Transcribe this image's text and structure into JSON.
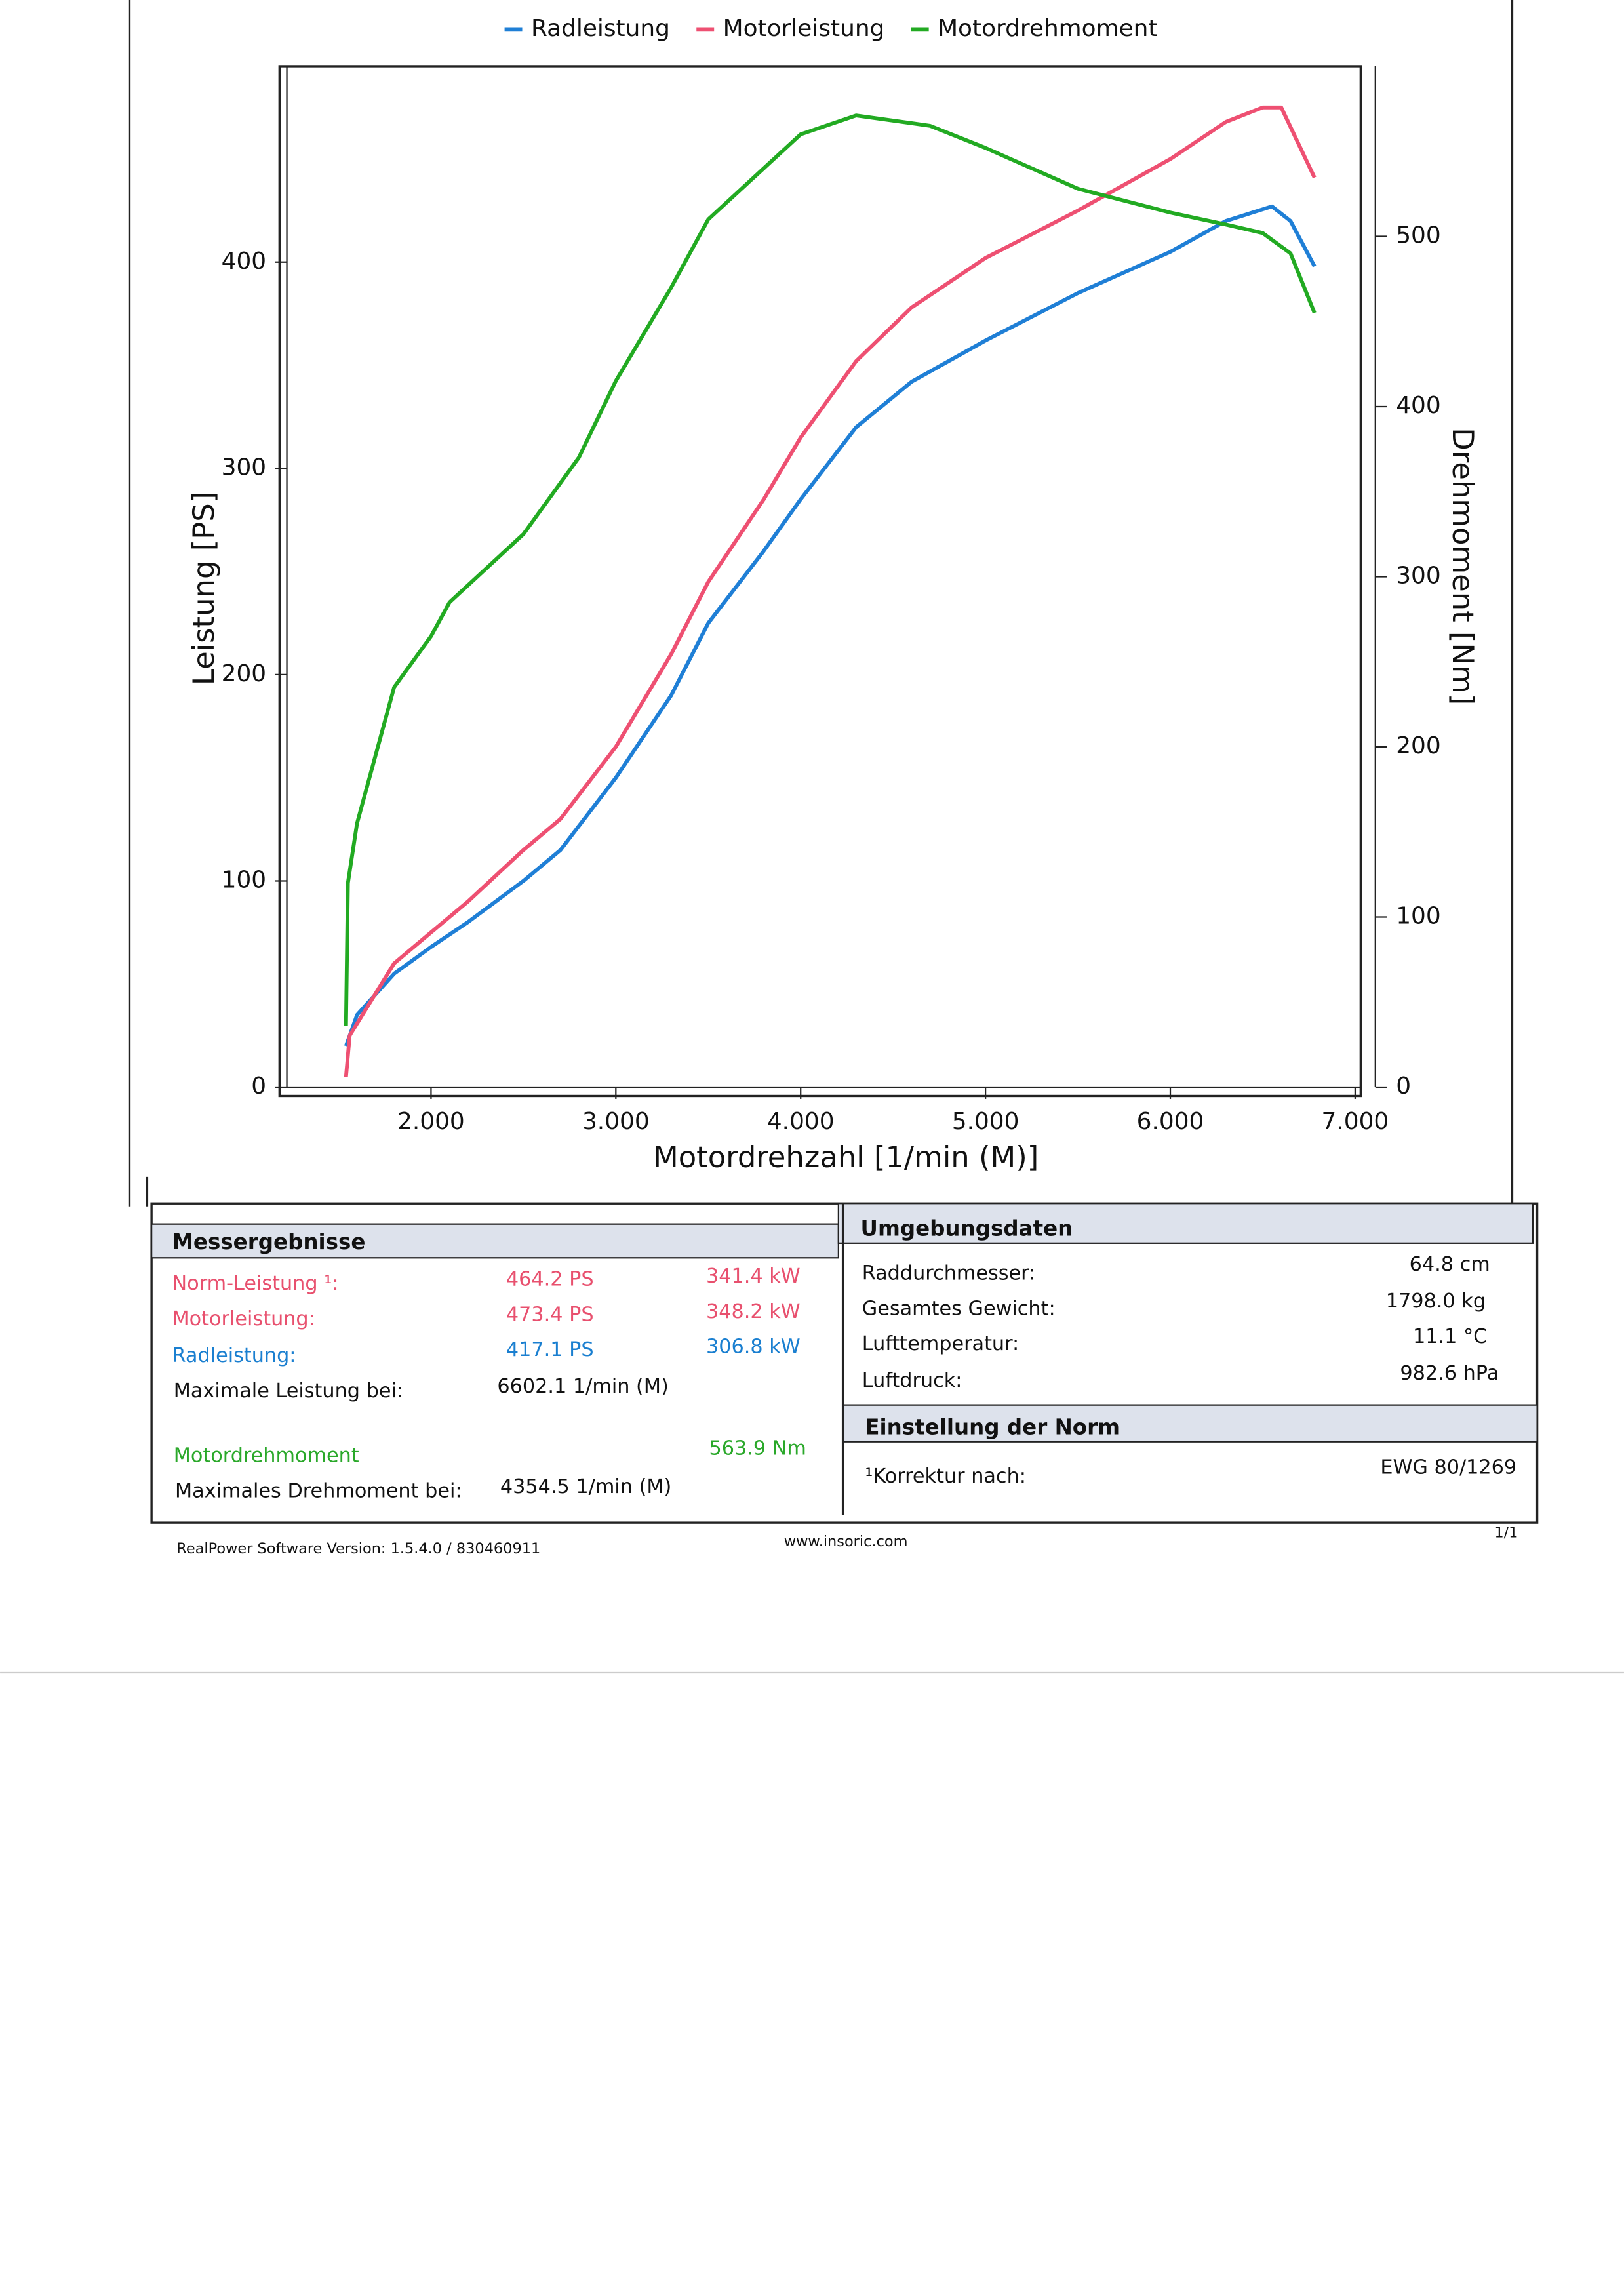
{
  "chart_data": {
    "type": "line",
    "x_label": "Motordrehzahl [1/min (M)]",
    "y_label": "Leistung [PS]",
    "y2_label": "Drehmoment [Nm]",
    "xlim": [
      1220,
      7030
    ],
    "ylim": [
      0,
      495
    ],
    "y2lim": [
      0,
      600
    ],
    "xticks": [
      {
        "value": 2000,
        "label": "2.000"
      },
      {
        "value": 3000,
        "label": "3.000"
      },
      {
        "value": 4000,
        "label": "4.000"
      },
      {
        "value": 5000,
        "label": "5.000"
      },
      {
        "value": 6000,
        "label": "6.000"
      },
      {
        "value": 7000,
        "label": "7.000"
      }
    ],
    "yticks": [
      0,
      100,
      200,
      300,
      400
    ],
    "y2ticks": [
      0,
      100,
      200,
      300,
      400,
      500
    ],
    "legend": "top",
    "series": [
      {
        "name": "Radleistung",
        "color": "#1f7fd6",
        "x": [
          1540,
          1600,
          1800,
          2000,
          2200,
          2500,
          2700,
          3000,
          3300,
          3500,
          3800,
          4000,
          4300,
          4600,
          5000,
          5500,
          6000,
          6300,
          6550,
          6650,
          6780
        ],
        "values": [
          20,
          35,
          55,
          68,
          80,
          100,
          115,
          150,
          190,
          225,
          260,
          285,
          320,
          342,
          362,
          385,
          405,
          420,
          427,
          420,
          398
        ]
      },
      {
        "name": "Motorleistung",
        "color": "#ee5072",
        "x": [
          1540,
          1560,
          1800,
          2000,
          2200,
          2500,
          2700,
          3000,
          3300,
          3500,
          3800,
          4000,
          4300,
          4600,
          5000,
          5500,
          6000,
          6300,
          6500,
          6600,
          6780
        ],
        "values": [
          5,
          25,
          60,
          75,
          90,
          115,
          130,
          165,
          210,
          245,
          285,
          315,
          352,
          378,
          402,
          425,
          450,
          468,
          475,
          475,
          441
        ]
      },
      {
        "name": "Motordrehmoment",
        "color": "#22aa22",
        "axis": "y2",
        "x": [
          1540,
          1550,
          1600,
          1800,
          2000,
          2100,
          2500,
          2800,
          3000,
          3300,
          3500,
          3800,
          4000,
          4300,
          4700,
          5000,
          5500,
          6000,
          6300,
          6500,
          6650,
          6780
        ],
        "values": [
          36,
          120,
          155,
          235,
          265,
          285,
          325,
          370,
          415,
          470,
          510,
          540,
          560,
          571,
          565,
          552,
          528,
          514,
          507,
          502,
          490,
          455
        ]
      }
    ]
  },
  "results": {
    "header": "Messergebnisse",
    "rows": [
      {
        "label": "Norm-Leistung ¹:",
        "ps": "464.2 PS",
        "kw": "341.4 kW"
      },
      {
        "label": "Motorleistung:",
        "ps": "473.4 PS",
        "kw": "348.2 kW"
      },
      {
        "label": "Radleistung:",
        "ps": "417.1 PS",
        "kw": "306.8 kW"
      }
    ],
    "max_power": {
      "label": "Maximale Leistung bei:",
      "value": "6602.1 1/min (M)"
    },
    "torque": {
      "label": "Motordrehmoment",
      "value": "563.9 Nm"
    },
    "max_torque": {
      "label": "Maximales Drehmoment bei:",
      "value": "4354.5 1/min (M)"
    }
  },
  "environment": {
    "header": "Umgebungsdaten",
    "rows": [
      {
        "label": "Raddurchmesser:",
        "value": "64.8 cm"
      },
      {
        "label": "Gesamtes Gewicht:",
        "value": "1798.0 kg"
      },
      {
        "label": "Lufttemperatur:",
        "value": "11.1 °C"
      },
      {
        "label": "Luftdruck:",
        "value": "982.6 hPa"
      }
    ]
  },
  "norm": {
    "header": "Einstellung der Norm",
    "rows": [
      {
        "label": "¹Korrektur nach:",
        "value": "EWG 80/1269"
      }
    ]
  },
  "footer": {
    "software": "RealPower Software Version: 1.5.4.0 / 830460911",
    "website": "www.insoric.com",
    "page": "1/1"
  }
}
